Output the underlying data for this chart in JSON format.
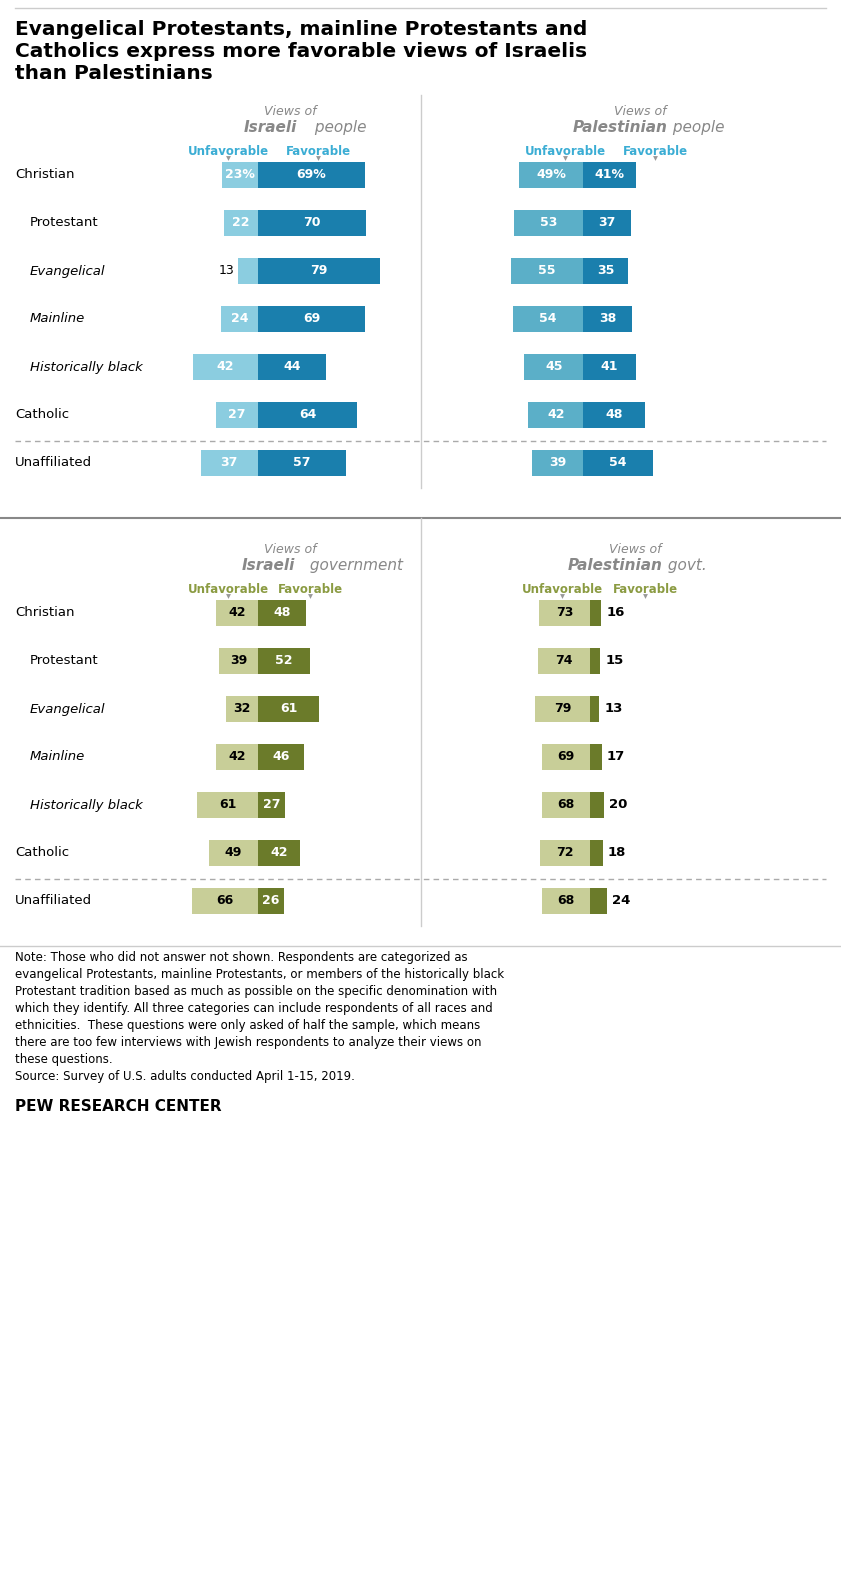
{
  "categories": [
    "Christian",
    "Protestant",
    "Evangelical",
    "Mainline",
    "Historically black",
    "Catholic",
    "Unaffiliated"
  ],
  "italic_rows": [
    2,
    3,
    4
  ],
  "indented_rows": [
    1,
    2,
    3,
    4
  ],
  "section1": {
    "data_left": [
      {
        "unfav": 23,
        "fav": 69
      },
      {
        "unfav": 22,
        "fav": 70
      },
      {
        "unfav": 13,
        "fav": 79
      },
      {
        "unfav": 24,
        "fav": 69
      },
      {
        "unfav": 42,
        "fav": 44
      },
      {
        "unfav": 27,
        "fav": 64
      },
      {
        "unfav": 37,
        "fav": 57
      }
    ],
    "data_right": [
      {
        "unfav": 49,
        "fav": 41
      },
      {
        "unfav": 53,
        "fav": 37
      },
      {
        "unfav": 55,
        "fav": 35
      },
      {
        "unfav": 54,
        "fav": 38
      },
      {
        "unfav": 45,
        "fav": 41
      },
      {
        "unfav": 42,
        "fav": 48
      },
      {
        "unfav": 39,
        "fav": 54
      }
    ]
  },
  "section2": {
    "data_left": [
      {
        "unfav": 42,
        "fav": 48
      },
      {
        "unfav": 39,
        "fav": 52
      },
      {
        "unfav": 32,
        "fav": 61
      },
      {
        "unfav": 42,
        "fav": 46
      },
      {
        "unfav": 61,
        "fav": 27
      },
      {
        "unfav": 49,
        "fav": 42
      },
      {
        "unfav": 66,
        "fav": 26
      }
    ],
    "data_right": [
      {
        "unfav": 73,
        "fav": 16
      },
      {
        "unfav": 74,
        "fav": 15
      },
      {
        "unfav": 79,
        "fav": 13
      },
      {
        "unfav": 69,
        "fav": 17
      },
      {
        "unfav": 68,
        "fav": 20
      },
      {
        "unfav": 72,
        "fav": 18
      },
      {
        "unfav": 68,
        "fav": 24
      }
    ]
  },
  "colors": {
    "blue_light": "#8BCDE0",
    "blue_dark": "#1A7FAD",
    "blue_med": "#5BAFC8",
    "green_light": "#C8CE98",
    "green_dark": "#6B7B2A",
    "green_dark2": "#7A8C30",
    "header_blue": "#3BADD4",
    "header_green": "#8B9B42",
    "divider": "#AAAAAA",
    "dot_color": "#999999",
    "text_gray": "#888888"
  },
  "note": "Note: Those who did not answer not shown. Respondents are categorized as\nevangelical Protestants, mainline Protestants, or members of the historically black\nProtestant tradition based as much as possible on the specific denomination with\nwhich they identify. All three categories can include respondents of all races and\nethnicities.  These questions were only asked of half the sample, which means\nthere are too few interviews with Jewish respondents to analyze their views on\nthese questions.\nSource: Survey of U.S. adults conducted April 1-15, 2019.",
  "source_org": "PEW RESEARCH CENTER"
}
